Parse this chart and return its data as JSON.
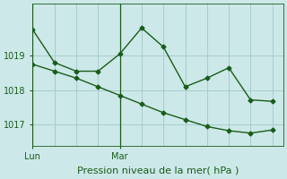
{
  "xlabel": "Pression niveau de la mer( hPa )",
  "background_color": "#cce8e8",
  "line_color": "#1a5c1a",
  "grid_color": "#a8cccc",
  "ylim": [
    1016.4,
    1020.5
  ],
  "yticks": [
    1017,
    1018,
    1019
  ],
  "xlim": [
    0,
    11.5
  ],
  "line1_x": [
    0,
    1,
    2,
    3,
    4,
    5,
    6,
    7,
    8,
    9,
    10,
    11
  ],
  "line1_y": [
    1019.75,
    1018.8,
    1018.55,
    1018.55,
    1019.05,
    1019.8,
    1019.25,
    1018.1,
    1018.35,
    1018.65,
    1017.72,
    1017.68
  ],
  "line2_x": [
    0,
    1,
    2,
    3,
    4,
    5,
    6,
    7,
    8,
    9,
    10,
    11
  ],
  "line2_y": [
    1018.75,
    1018.55,
    1018.35,
    1018.1,
    1017.85,
    1017.6,
    1017.35,
    1017.15,
    1016.95,
    1016.83,
    1016.76,
    1016.85
  ],
  "vlines_x": [
    0,
    4
  ],
  "vline_labels": [
    "Lun",
    "Mar"
  ],
  "n_vertical_grid": 12,
  "marker_size": 2.5,
  "linewidth": 1.0,
  "xlabel_fontsize": 8,
  "ytick_fontsize": 7,
  "xtick_fontsize": 7
}
